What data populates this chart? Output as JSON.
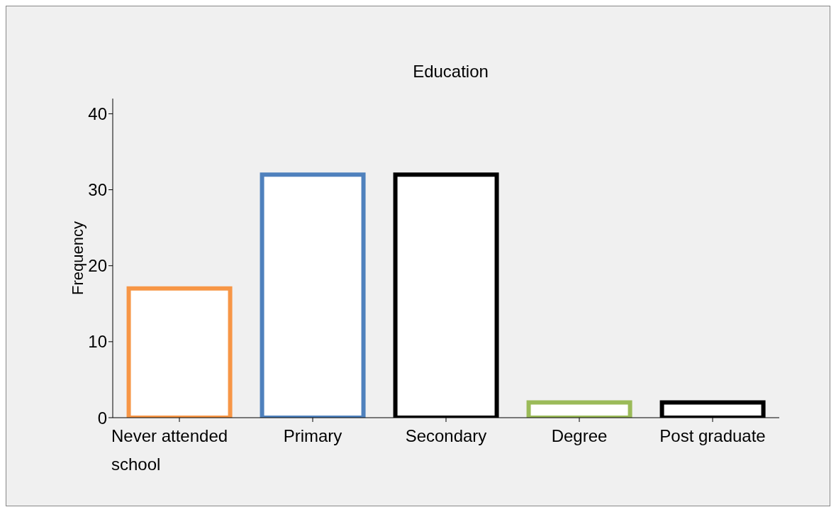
{
  "chart_data": {
    "type": "bar",
    "title": "Education",
    "ylabel": "Frequency",
    "categories": [
      "Never attended school",
      "Primary",
      "Secondary",
      "Degree",
      "Post graduate"
    ],
    "values": [
      17,
      32,
      32,
      2,
      2
    ],
    "colors": [
      "#f79646",
      "#4f81bd",
      "#000000",
      "#9bbb59",
      "#000000"
    ],
    "ylim": [
      0,
      42
    ],
    "yticks": [
      0,
      10,
      20,
      30,
      40
    ],
    "grid": false,
    "legend": false
  }
}
